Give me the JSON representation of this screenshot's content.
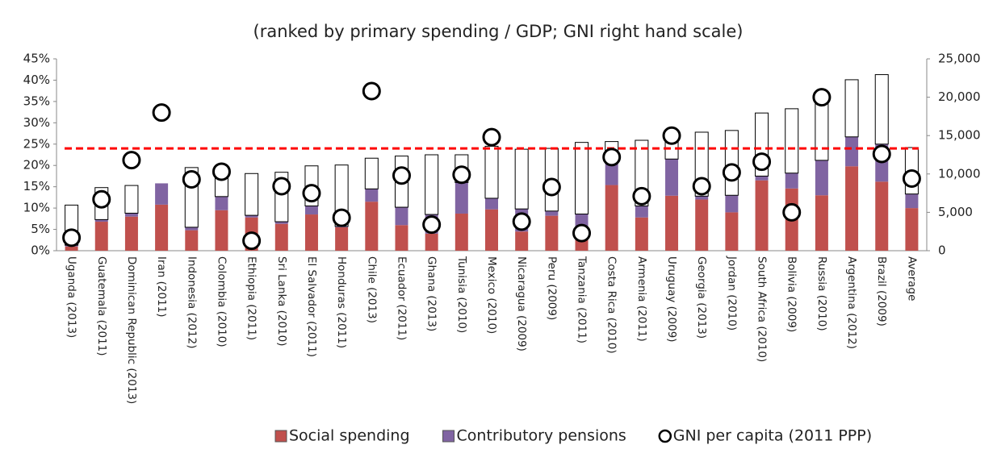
{
  "chart_data": {
    "type": "bar",
    "title": "(ranked by primary spending / GDP; GNI right hand scale)",
    "categories": [
      "Uganda (2013)",
      "Guatemala (2011)",
      "Dominican Republic (2013)",
      "Iran (2011)",
      "Indonesia (2012)",
      "Colombia (2010)",
      "Ethiopia (2011)",
      "Sri Lanka (2010)",
      "El Salvador (2011)",
      "Honduras (2011)",
      "Chile (2013)",
      "Ecuador (2011)",
      "Ghana (2013)",
      "Tunisia (2010)",
      "Mexico (2010)",
      "Nicaragua (2009)",
      "Peru (2009)",
      "Tanzania (2011)",
      "Costa Rica (2010)",
      "Armenia (2011)",
      "Uruguay (2009)",
      "Georgia (2013)",
      "Jordan (2010)",
      "South Africa (2010)",
      "Bolivia (2009)",
      "Russia (2010)",
      "Argentina (2012)",
      "Brazil (2009)",
      "Average"
    ],
    "series": [
      {
        "name": "Social spending",
        "color": "#c0504d",
        "values": [
          1,
          6.8,
          8,
          10.8,
          4.8,
          9.5,
          7.8,
          6.3,
          8.5,
          5.5,
          11.5,
          6,
          4,
          8.7,
          9.7,
          4.5,
          8.2,
          3,
          15.4,
          7.8,
          12.9,
          12,
          9,
          16.5,
          14.6,
          13,
          19.8,
          16.2,
          10
        ]
      },
      {
        "name": "Contributory pensions",
        "color": "#8064a2",
        "values": [
          0.3,
          0.5,
          0.8,
          5,
          0.7,
          3.2,
          0.5,
          0.5,
          2,
          0.2,
          3,
          4.2,
          4.5,
          7.3,
          2.6,
          5.3,
          1.1,
          5.6,
          5.6,
          2.7,
          8.6,
          0.8,
          4,
          1,
          3.6,
          8.2,
          6.9,
          8.8,
          3.3
        ]
      },
      {
        "color": "#ffffff",
        "values": [
          9.4,
          7.5,
          6.5,
          0,
          14,
          6.8,
          9.8,
          11.6,
          9.4,
          14.4,
          7.2,
          12,
          14,
          6.5,
          12.2,
          14,
          14.7,
          16.8,
          4.6,
          15.4,
          5.5,
          15,
          15.2,
          14.8,
          15.1,
          14.3,
          13.4,
          16.3,
          10.9
        ]
      },
      {
        "name": "GNI per capita (2011 PPP)",
        "color": "#ffffff",
        "axis": "y2",
        "values": [
          1700,
          6700,
          11800,
          18000,
          9300,
          10300,
          1300,
          8400,
          7500,
          4300,
          20800,
          9800,
          3400,
          9900,
          14800,
          3800,
          8300,
          2300,
          12200,
          7100,
          15000,
          8400,
          10200,
          11600,
          5000,
          20000,
          null,
          12600,
          9400
        ]
      }
    ],
    "reference_line": {
      "value": 24,
      "color": "#ff0000"
    },
    "ylim": [
      0,
      45
    ],
    "yticks": [
      {
        "value": 0,
        "label": "0%"
      },
      {
        "value": 5,
        "label": "5%"
      },
      {
        "value": 10,
        "label": "10%"
      },
      {
        "value": 15,
        "label": "15%"
      },
      {
        "value": 20,
        "label": "20%"
      },
      {
        "value": 25,
        "label": "25%"
      },
      {
        "value": 30,
        "label": "30%"
      },
      {
        "value": 35,
        "label": "35%"
      },
      {
        "value": 40,
        "label": "40%"
      },
      {
        "value": 45,
        "label": "45%"
      }
    ],
    "y2lim": [
      0,
      25000
    ],
    "y2ticks": [
      0,
      {
        "value": 5000,
        "label": "5,000"
      },
      {
        "value": 10000,
        "label": "10,000"
      },
      {
        "value": 15000,
        "label": "15,000"
      },
      {
        "value": 20000,
        "label": "20,000"
      },
      {
        "value": 25000,
        "label": "25,000"
      }
    ],
    "grid": false
  }
}
